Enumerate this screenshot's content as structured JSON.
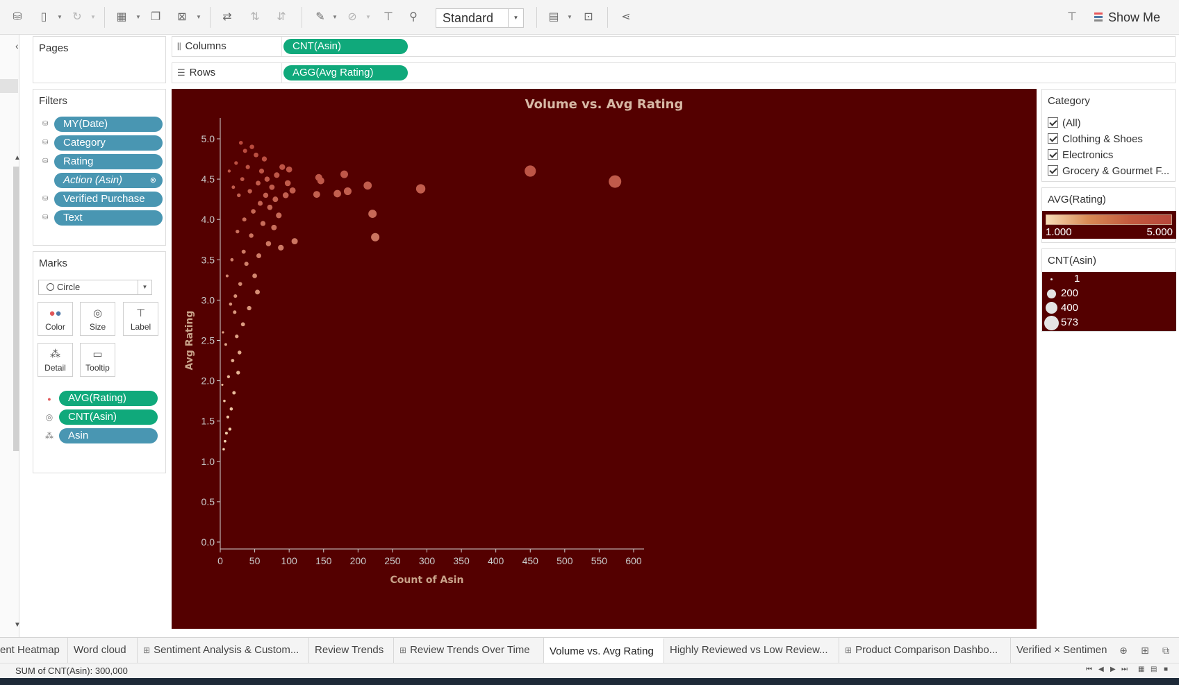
{
  "toolbar": {
    "icons": [
      "new-data-source-icon",
      "pause-updates-icon",
      "refresh-icon",
      "new-worksheet-icon",
      "duplicate-icon",
      "clear-icon",
      "swap-icon",
      "sort-ascending-icon",
      "sort-descending-icon",
      "highlight-icon",
      "group-icon",
      "label-icon",
      "pin-icon",
      "show-cards-icon",
      "presentation-icon",
      "share-icon",
      "pointer-icon"
    ],
    "fit_value": "Standard",
    "show_me_label": "Show Me"
  },
  "pages_card": {
    "title": "Pages"
  },
  "filters_card": {
    "title": "Filters",
    "items": [
      {
        "label": "MY(Date)"
      },
      {
        "label": "Category"
      },
      {
        "label": "Rating"
      },
      {
        "label": "Action (Asin)"
      },
      {
        "label": "Verified Purchase"
      },
      {
        "label": "Text"
      }
    ]
  },
  "marks_card": {
    "title": "Marks",
    "mark_type": "Circle",
    "buttons": [
      {
        "label": "Color",
        "icon": "color-icon"
      },
      {
        "label": "Size",
        "icon": "size-icon"
      },
      {
        "label": "Label",
        "icon": "label-icon"
      },
      {
        "label": "Detail",
        "icon": "detail-icon"
      },
      {
        "label": "Tooltip",
        "icon": "tooltip-icon"
      }
    ],
    "fields": [
      {
        "label": "AVG(Rating)",
        "icon": "color-icon"
      },
      {
        "label": "CNT(Asin)",
        "icon": "size-icon"
      },
      {
        "label": "Asin",
        "icon": "detail-icon"
      }
    ]
  },
  "shelves": {
    "columns": {
      "label": "Columns",
      "pill": "CNT(Asin)"
    },
    "rows": {
      "label": "Rows",
      "pill": "AGG(Avg Rating)"
    }
  },
  "chart_data": {
    "type": "scatter",
    "title": "Volume vs. Avg Rating",
    "xlabel": "Count of Asin",
    "ylabel": "Avg Rating",
    "xlim": [
      0,
      600
    ],
    "ylim": [
      0,
      5
    ],
    "x_ticks": [
      "0",
      "50",
      "100",
      "150",
      "200",
      "250",
      "300",
      "350",
      "400",
      "450",
      "500",
      "550",
      "600"
    ],
    "y_ticks": [
      "0.0",
      "0.5",
      "1.0",
      "1.5",
      "2.0",
      "2.5",
      "3.0",
      "3.5",
      "4.0",
      "4.5",
      "5.0"
    ],
    "grid": false,
    "colors": {
      "background": "#540000",
      "low": "#f7dcb6",
      "high": "#b8463a",
      "axis": "#cfcfcf"
    },
    "points": [
      {
        "x": 573,
        "y": 4.47
      },
      {
        "x": 450,
        "y": 4.6
      },
      {
        "x": 291,
        "y": 4.38
      },
      {
        "x": 225,
        "y": 3.78
      },
      {
        "x": 221,
        "y": 4.07
      },
      {
        "x": 214,
        "y": 4.42
      },
      {
        "x": 185,
        "y": 4.35
      },
      {
        "x": 180,
        "y": 4.56
      },
      {
        "x": 170,
        "y": 4.32
      },
      {
        "x": 146,
        "y": 4.48
      },
      {
        "x": 143,
        "y": 4.52
      },
      {
        "x": 140,
        "y": 4.31
      },
      {
        "x": 108,
        "y": 3.73
      },
      {
        "x": 105,
        "y": 4.36
      },
      {
        "x": 100,
        "y": 4.62
      },
      {
        "x": 98,
        "y": 4.45
      },
      {
        "x": 95,
        "y": 4.3
      },
      {
        "x": 90,
        "y": 4.65
      },
      {
        "x": 88,
        "y": 3.65
      },
      {
        "x": 85,
        "y": 4.05
      },
      {
        "x": 82,
        "y": 4.55
      },
      {
        "x": 80,
        "y": 4.25
      },
      {
        "x": 78,
        "y": 3.9
      },
      {
        "x": 75,
        "y": 4.4
      },
      {
        "x": 72,
        "y": 4.15
      },
      {
        "x": 70,
        "y": 3.7
      },
      {
        "x": 68,
        "y": 4.5
      },
      {
        "x": 66,
        "y": 4.3
      },
      {
        "x": 64,
        "y": 4.75
      },
      {
        "x": 62,
        "y": 3.95
      },
      {
        "x": 60,
        "y": 4.6
      },
      {
        "x": 58,
        "y": 4.2
      },
      {
        "x": 56,
        "y": 3.55
      },
      {
        "x": 55,
        "y": 4.45
      },
      {
        "x": 54,
        "y": 3.1
      },
      {
        "x": 52,
        "y": 4.8
      },
      {
        "x": 50,
        "y": 3.3
      },
      {
        "x": 48,
        "y": 4.1
      },
      {
        "x": 46,
        "y": 4.9
      },
      {
        "x": 45,
        "y": 3.8
      },
      {
        "x": 43,
        "y": 4.35
      },
      {
        "x": 42,
        "y": 2.9
      },
      {
        "x": 40,
        "y": 4.65
      },
      {
        "x": 38,
        "y": 3.45
      },
      {
        "x": 36,
        "y": 4.85
      },
      {
        "x": 35,
        "y": 4.0
      },
      {
        "x": 34,
        "y": 3.6
      },
      {
        "x": 33,
        "y": 2.7
      },
      {
        "x": 32,
        "y": 4.5
      },
      {
        "x": 30,
        "y": 4.95
      },
      {
        "x": 29,
        "y": 3.2
      },
      {
        "x": 28,
        "y": 2.35
      },
      {
        "x": 27,
        "y": 4.3
      },
      {
        "x": 26,
        "y": 2.1
      },
      {
        "x": 25,
        "y": 3.85
      },
      {
        "x": 24,
        "y": 2.55
      },
      {
        "x": 23,
        "y": 4.7
      },
      {
        "x": 22,
        "y": 3.05
      },
      {
        "x": 21,
        "y": 2.85
      },
      {
        "x": 20,
        "y": 1.85
      },
      {
        "x": 19,
        "y": 4.4
      },
      {
        "x": 18,
        "y": 2.25
      },
      {
        "x": 17,
        "y": 3.5
      },
      {
        "x": 16,
        "y": 1.65
      },
      {
        "x": 15,
        "y": 2.95
      },
      {
        "x": 14,
        "y": 1.4
      },
      {
        "x": 13,
        "y": 4.6
      },
      {
        "x": 12,
        "y": 2.05
      },
      {
        "x": 11,
        "y": 1.55
      },
      {
        "x": 10,
        "y": 3.3
      },
      {
        "x": 9,
        "y": 1.35
      },
      {
        "x": 8,
        "y": 2.45
      },
      {
        "x": 7,
        "y": 1.25
      },
      {
        "x": 6,
        "y": 1.75
      },
      {
        "x": 5,
        "y": 1.15
      },
      {
        "x": 4,
        "y": 2.6
      },
      {
        "x": 3,
        "y": 1.95
      }
    ]
  },
  "legends": {
    "category": {
      "title": "Category",
      "items": [
        {
          "label": "(All)"
        },
        {
          "label": "Clothing & Shoes"
        },
        {
          "label": "Electronics"
        },
        {
          "label": "Grocery & Gourmet F..."
        }
      ]
    },
    "color": {
      "title": "AVG(Rating)",
      "min": "1.000",
      "max": "5.000"
    },
    "size": {
      "title": "CNT(Asin)",
      "items": [
        {
          "label": "1"
        },
        {
          "label": "200"
        },
        {
          "label": "400"
        },
        {
          "label": "573"
        }
      ]
    }
  },
  "tabs": [
    {
      "label": "ent Heatmap",
      "glyph": ""
    },
    {
      "label": "Word cloud",
      "glyph": ""
    },
    {
      "label": "Sentiment Analysis & Custom...",
      "glyph": "⊞"
    },
    {
      "label": "Review Trends",
      "glyph": ""
    },
    {
      "label": "Review Trends Over Time",
      "glyph": "⊞"
    },
    {
      "label": "Volume vs. Avg Rating",
      "glyph": ""
    },
    {
      "label": "Highly Reviewed vs Low Review...",
      "glyph": ""
    },
    {
      "label": "Product Comparison Dashbo...",
      "glyph": "⊞"
    },
    {
      "label": "Verified × Sentimen",
      "glyph": ""
    }
  ],
  "status": {
    "text": "SUM of CNT(Asin): 300,000"
  }
}
